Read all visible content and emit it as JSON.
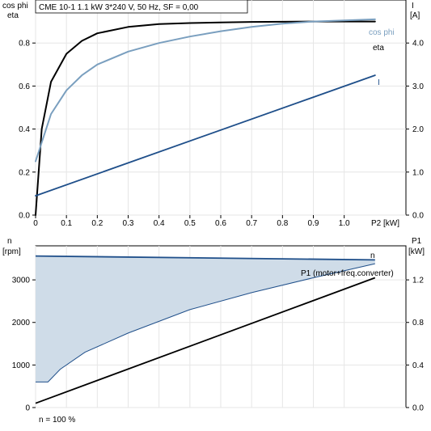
{
  "chart_data": [
    {
      "type": "line",
      "title": "CME 10-1   1.1 kW   3*240 V, 50 Hz, SF = 0,00",
      "xlabel": "P2 [kW]",
      "ylabel_left_line1": "cos phi",
      "ylabel_left_line2": "eta",
      "ylabel_right_line1": "I",
      "ylabel_right_line2": "[A]",
      "xlim": [
        0,
        1.2
      ],
      "ylim_left": [
        0,
        1.0
      ],
      "ylim_right": [
        0,
        5.0
      ],
      "grid": true,
      "x_ticks": [
        "0",
        "0.1",
        "0.2",
        "0.3",
        "0.4",
        "0.5",
        "0.6",
        "0.7",
        "0.8",
        "0.9",
        "1.0"
      ],
      "y_left_ticks": [
        "0.0",
        "0.2",
        "0.4",
        "0.6",
        "0.8"
      ],
      "y_right_ticks": [
        "0.0",
        "1.0",
        "2.0",
        "3.0",
        "4.0"
      ],
      "series": [
        {
          "name": "eta",
          "axis": "left",
          "color": "#000000",
          "x": [
            0,
            0.02,
            0.05,
            0.1,
            0.15,
            0.2,
            0.3,
            0.4,
            0.5,
            0.6,
            0.7,
            0.8,
            0.9,
            1.0,
            1.1
          ],
          "y": [
            0.0,
            0.4,
            0.62,
            0.75,
            0.81,
            0.845,
            0.875,
            0.888,
            0.893,
            0.896,
            0.898,
            0.899,
            0.9,
            0.9,
            0.9
          ]
        },
        {
          "name": "cos phi",
          "axis": "left",
          "color": "#7a9fbf",
          "x": [
            0,
            0.05,
            0.1,
            0.15,
            0.2,
            0.3,
            0.4,
            0.5,
            0.6,
            0.7,
            0.8,
            0.9,
            1.0,
            1.1
          ],
          "y": [
            0.25,
            0.47,
            0.58,
            0.65,
            0.7,
            0.76,
            0.8,
            0.83,
            0.855,
            0.875,
            0.89,
            0.9,
            0.905,
            0.91
          ]
        },
        {
          "name": "I",
          "axis": "right",
          "color": "#1f4f8a",
          "x": [
            0,
            1.1
          ],
          "y": [
            0.45,
            3.25
          ]
        }
      ]
    },
    {
      "type": "area",
      "xlim": [
        0,
        1.2
      ],
      "ylabel_left_line1": "n",
      "ylabel_left_line2": "[rpm]",
      "ylabel_right_line1": "P1",
      "ylabel_right_line2": "[kW]",
      "ylim_left": [
        0,
        3800
      ],
      "ylim_right": [
        0,
        1.52
      ],
      "grid": true,
      "y_left_ticks": [
        "0",
        "1000",
        "2000",
        "3000"
      ],
      "y_right_ticks": [
        "0.0",
        "0.4",
        "0.8",
        "1.2"
      ],
      "footnote": "n = 100 %",
      "series": [
        {
          "name": "n",
          "axis": "left",
          "color": "#1f4f8a",
          "x": [
            0,
            1.1
          ],
          "y": [
            3560,
            3470
          ]
        },
        {
          "name": "n (lower)",
          "axis": "left",
          "color": "#1f4f8a",
          "x": [
            0,
            0.04,
            0.08,
            0.16,
            0.3,
            0.5,
            0.7,
            0.9,
            1.1
          ],
          "y": [
            600,
            600,
            900,
            1300,
            1750,
            2300,
            2700,
            3050,
            3380
          ]
        },
        {
          "name": "P1 (motor+freq.converter)",
          "axis": "right",
          "color": "#000000",
          "x": [
            0,
            1.1
          ],
          "y": [
            0.04,
            1.22
          ]
        }
      ],
      "fill_color": "#cfdce8"
    }
  ]
}
